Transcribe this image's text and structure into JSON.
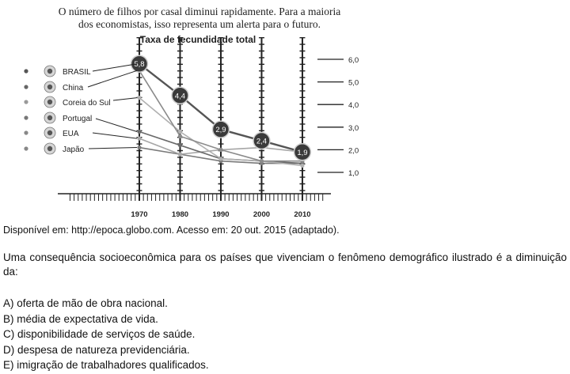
{
  "figure": {
    "headline_line1": "O número de filhos por casal diminui rapidamente. Para a maioria",
    "headline_line2": "dos economistas, isso representa um alerta para o futuro."
  },
  "chart_data": {
    "type": "line",
    "title": "Taxa de fecundidade total",
    "x": [
      1970,
      1980,
      1990,
      2000,
      2010
    ],
    "x_tick_labels": [
      "1970",
      "1980",
      "1990",
      "2000",
      "2010"
    ],
    "y_tick_labels": [
      "6,0",
      "5,0",
      "4,0",
      "3,0",
      "2,0",
      "1,0"
    ],
    "y_ticks": [
      6,
      5,
      4,
      3,
      2,
      1
    ],
    "ylim": [
      0.5,
      6.5
    ],
    "xlim": [
      1950,
      2017
    ],
    "legend_placement": "left",
    "series": [
      {
        "name": "BRASIL",
        "values": [
          5.8,
          4.4,
          2.9,
          2.4,
          1.9
        ],
        "color": "#555555",
        "width": 2.4,
        "labeled": true
      },
      {
        "name": "China",
        "values": [
          5.5,
          2.6,
          2.0,
          1.5,
          1.5
        ],
        "color": "#8a8a8a",
        "width": 1.6,
        "labeled": false
      },
      {
        "name": "Coreia do Sul",
        "values": [
          4.3,
          2.8,
          1.6,
          1.5,
          1.3
        ],
        "color": "#b0b0b0",
        "width": 1.6,
        "labeled": false
      },
      {
        "name": "Portugal",
        "values": [
          2.8,
          2.2,
          1.6,
          1.5,
          1.4
        ],
        "color": "#6a6a6a",
        "width": 1.6,
        "labeled": false
      },
      {
        "name": "EUA",
        "values": [
          2.5,
          1.8,
          2.0,
          2.1,
          1.9
        ],
        "color": "#a6a6a6",
        "width": 1.6,
        "labeled": false
      },
      {
        "name": "Japão",
        "values": [
          2.1,
          1.8,
          1.5,
          1.4,
          1.4
        ],
        "color": "#7a7a7a",
        "width": 1.6,
        "labeled": false
      }
    ],
    "data_labels": [
      "5,8",
      "4,4",
      "2,9",
      "2,4",
      "1,9"
    ],
    "grid": false
  },
  "caption": "Disponível em: http://epoca.globo.com. Acesso em: 20 out. 2015 (adaptado).",
  "question": "Uma consequência socioeconômica para os países que vivenciam o fenômeno demográfico ilustrado é a diminuição da:",
  "options": [
    "A) oferta de mão de obra nacional.",
    "B) média de expectativa de vida.",
    "C) disponibilidade de serviços de saúde.",
    "D) despesa de natureza previdenciária.",
    "E) imigração de trabalhadores qualificados."
  ]
}
